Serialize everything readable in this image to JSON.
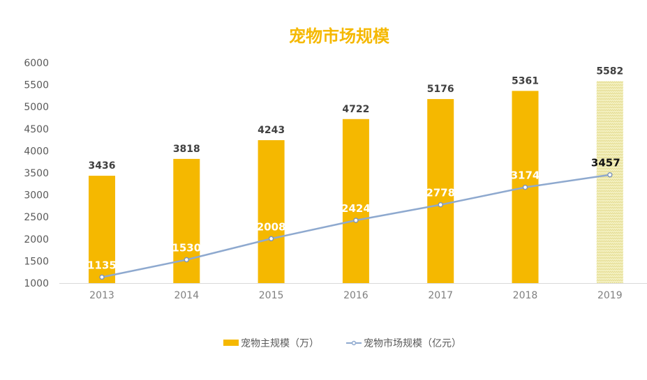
{
  "chart_data": {
    "type": "bar+line",
    "title": "宠物市场规模",
    "categories": [
      "2013",
      "2014",
      "2015",
      "2016",
      "2017",
      "2018",
      "2019"
    ],
    "series": [
      {
        "name": "宠物主规模（万）",
        "type": "bar",
        "color": "#F5B800",
        "values": [
          3436,
          3818,
          4243,
          4722,
          5176,
          5361,
          5582
        ],
        "note_last_bar_pattern": "pale yellow hatched (forecast)"
      },
      {
        "name": "宠物市场规模（亿元）",
        "type": "line",
        "color": "#8EA9CF",
        "values": [
          1135,
          1530,
          2008,
          2424,
          2778,
          3174,
          3457
        ]
      }
    ],
    "ylim": [
      1000,
      6000
    ],
    "yticks": [
      1000,
      1500,
      2000,
      2500,
      3000,
      3500,
      4000,
      4500,
      5000,
      5500,
      6000
    ],
    "grid": false,
    "legend": "bottom"
  }
}
